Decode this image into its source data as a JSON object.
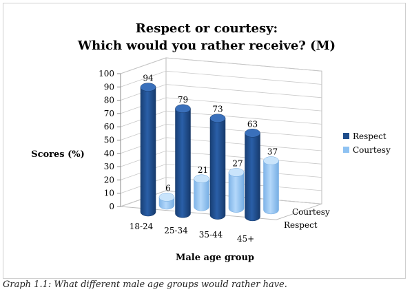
{
  "chart_data": {
    "type": "bar",
    "title_line1": "Respect or courtesy:",
    "title_line2": "Which would you rather receive? (M)",
    "xlabel": "Male age group",
    "ylabel": "Scores (%)",
    "ylim": [
      0,
      100
    ],
    "yticks": [
      "0",
      "10",
      "20",
      "30",
      "40",
      "50",
      "60",
      "70",
      "80",
      "90",
      "100"
    ],
    "categories": [
      "18-24",
      "25-34",
      "35-44",
      "45+"
    ],
    "depth_labels": [
      "Courtesy",
      "Respect"
    ],
    "legend_position": "right",
    "grid": true,
    "series": [
      {
        "name": "Respect",
        "values": [
          94,
          79,
          73,
          63
        ],
        "color": "#1F4E8C"
      },
      {
        "name": "Courtesy",
        "values": [
          6,
          21,
          27,
          37
        ],
        "color": "#8EC2F2"
      }
    ]
  },
  "caption": "Graph 1.1: What different male age groups would rather have."
}
